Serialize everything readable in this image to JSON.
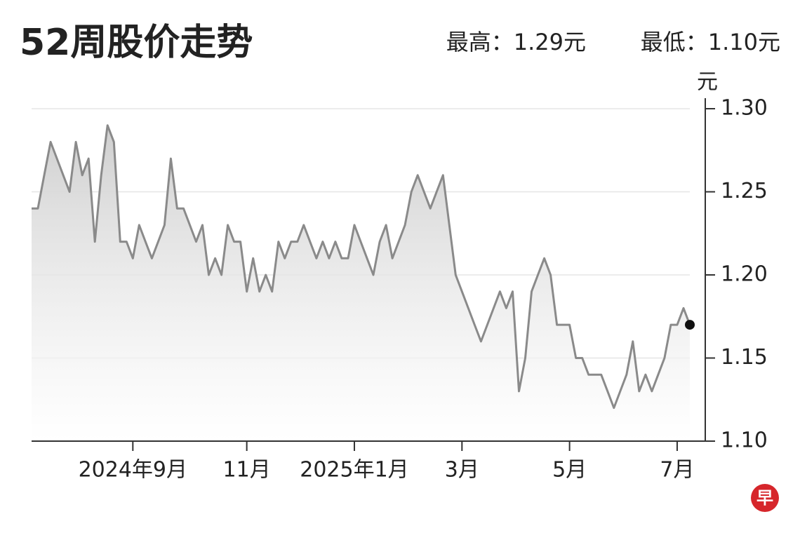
{
  "chart_data": {
    "type": "line",
    "title": "52周股价走势",
    "high_label": "最高：1.29元",
    "low_label": "最低：1.10元",
    "y_unit": "元",
    "logo": "早",
    "color": "#8a8a8a",
    "values": [
      1.24,
      1.24,
      1.26,
      1.28,
      1.27,
      1.26,
      1.25,
      1.28,
      1.26,
      1.27,
      1.22,
      1.26,
      1.29,
      1.28,
      1.22,
      1.22,
      1.21,
      1.23,
      1.22,
      1.21,
      1.22,
      1.23,
      1.27,
      1.24,
      1.24,
      1.23,
      1.22,
      1.23,
      1.2,
      1.21,
      1.2,
      1.23,
      1.22,
      1.22,
      1.19,
      1.21,
      1.19,
      1.2,
      1.19,
      1.22,
      1.21,
      1.22,
      1.22,
      1.23,
      1.22,
      1.21,
      1.22,
      1.21,
      1.22,
      1.21,
      1.21,
      1.23,
      1.22,
      1.21,
      1.2,
      1.22,
      1.23,
      1.21,
      1.22,
      1.23,
      1.25,
      1.26,
      1.25,
      1.24,
      1.25,
      1.26,
      1.23,
      1.2,
      1.19,
      1.18,
      1.17,
      1.16,
      1.17,
      1.18,
      1.19,
      1.18,
      1.19,
      1.13,
      1.15,
      1.19,
      1.2,
      1.21,
      1.2,
      1.17,
      1.17,
      1.17,
      1.15,
      1.15,
      1.14,
      1.14,
      1.14,
      1.13,
      1.12,
      1.13,
      1.14,
      1.16,
      1.13,
      1.14,
      1.13,
      1.14,
      1.15,
      1.17,
      1.17,
      1.18,
      1.17
    ],
    "xlim": [
      0,
      104
    ],
    "xticks": [
      {
        "value": 16,
        "label": "2024年9月"
      },
      {
        "value": 34,
        "label": "11月"
      },
      {
        "value": 51,
        "label": "2025年1月"
      },
      {
        "value": 68,
        "label": "3月"
      },
      {
        "value": 85,
        "label": "5月"
      },
      {
        "value": 102,
        "label": "7月"
      }
    ],
    "ylim": [
      1.1,
      1.3
    ],
    "yticks": [
      {
        "value": 1.1,
        "label": "1.10"
      },
      1.15,
      {
        "value": 1.2,
        "label": "1.20"
      },
      1.25,
      {
        "value": 1.3,
        "label": "1.30"
      }
    ],
    "grid": true
  }
}
